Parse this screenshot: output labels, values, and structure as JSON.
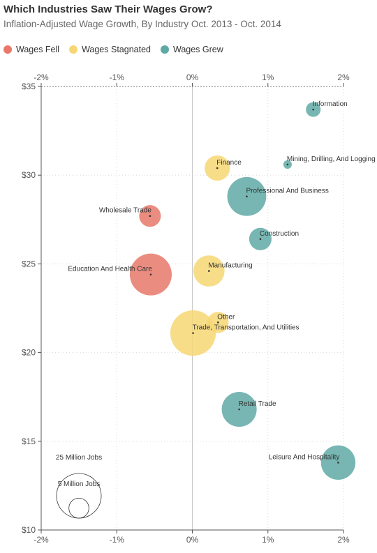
{
  "title": "Which Industries Saw Their Wages Grow?",
  "subtitle": "Inflation-Adjusted Wage Growth, By Industry Oct. 2013 - Oct. 2014",
  "legend": [
    {
      "label": "Wages Fell",
      "color": "#e8786a"
    },
    {
      "label": "Wages Stagnated",
      "color": "#f7d774"
    },
    {
      "label": "Wages Grew",
      "color": "#5fa9a5"
    }
  ],
  "chart_data": {
    "type": "scatter",
    "xlim": [
      -2,
      2
    ],
    "ylim": [
      10,
      35
    ],
    "x_ticks": [
      "-2%",
      "-1%",
      "0%",
      "1%",
      "2%"
    ],
    "y_ticks": [
      "$35",
      "$30",
      "$25",
      "$20",
      "$15",
      "$10"
    ],
    "grid": true,
    "legend_position": "top-left",
    "size_legend": [
      {
        "label": "25 Million Jobs",
        "jobs_millions": 25
      },
      {
        "label": "5 Million Jobs",
        "jobs_millions": 5
      }
    ],
    "points": [
      {
        "name": "Information",
        "x": 1.6,
        "y": 33.7,
        "jobs_millions": 2.7,
        "category": "Wages Grew",
        "label_side": "right"
      },
      {
        "name": "Mining, Drilling, And Logging",
        "x": 1.26,
        "y": 30.6,
        "jobs_millions": 0.9,
        "category": "Wages Grew",
        "label_side": "right"
      },
      {
        "name": "Finance",
        "x": 0.33,
        "y": 30.4,
        "jobs_millions": 8.0,
        "category": "Wages Stagnated",
        "label_side": "right"
      },
      {
        "name": "Professional And Business",
        "x": 0.72,
        "y": 28.8,
        "jobs_millions": 19.0,
        "category": "Wages Grew",
        "label_side": "right"
      },
      {
        "name": "Wholesale Trade",
        "x": -0.56,
        "y": 27.7,
        "jobs_millions": 5.9,
        "category": "Wages Fell",
        "label_side": "left"
      },
      {
        "name": "Construction",
        "x": 0.9,
        "y": 26.4,
        "jobs_millions": 6.3,
        "category": "Wages Grew",
        "label_side": "right"
      },
      {
        "name": "Manufacturing",
        "x": 0.22,
        "y": 24.6,
        "jobs_millions": 12.2,
        "category": "Wages Stagnated",
        "label_side": "right"
      },
      {
        "name": "Education And Health Care",
        "x": -0.55,
        "y": 24.4,
        "jobs_millions": 22.0,
        "category": "Wages Fell",
        "label_side": "left"
      },
      {
        "name": "Other",
        "x": 0.34,
        "y": 21.7,
        "jobs_millions": 5.6,
        "category": "Wages Stagnated",
        "label_side": "right"
      },
      {
        "name": "Trade, Transportation, And Utilities",
        "x": 0.01,
        "y": 21.1,
        "jobs_millions": 26.0,
        "category": "Wages Stagnated",
        "label_side": "right"
      },
      {
        "name": "Retail Trade",
        "x": 0.62,
        "y": 16.8,
        "jobs_millions": 15.3,
        "category": "Wages Grew",
        "label_side": "right"
      },
      {
        "name": "Leisure And Hospitality",
        "x": 1.93,
        "y": 13.8,
        "jobs_millions": 14.9,
        "category": "Wages Grew",
        "label_side": "left"
      }
    ]
  }
}
